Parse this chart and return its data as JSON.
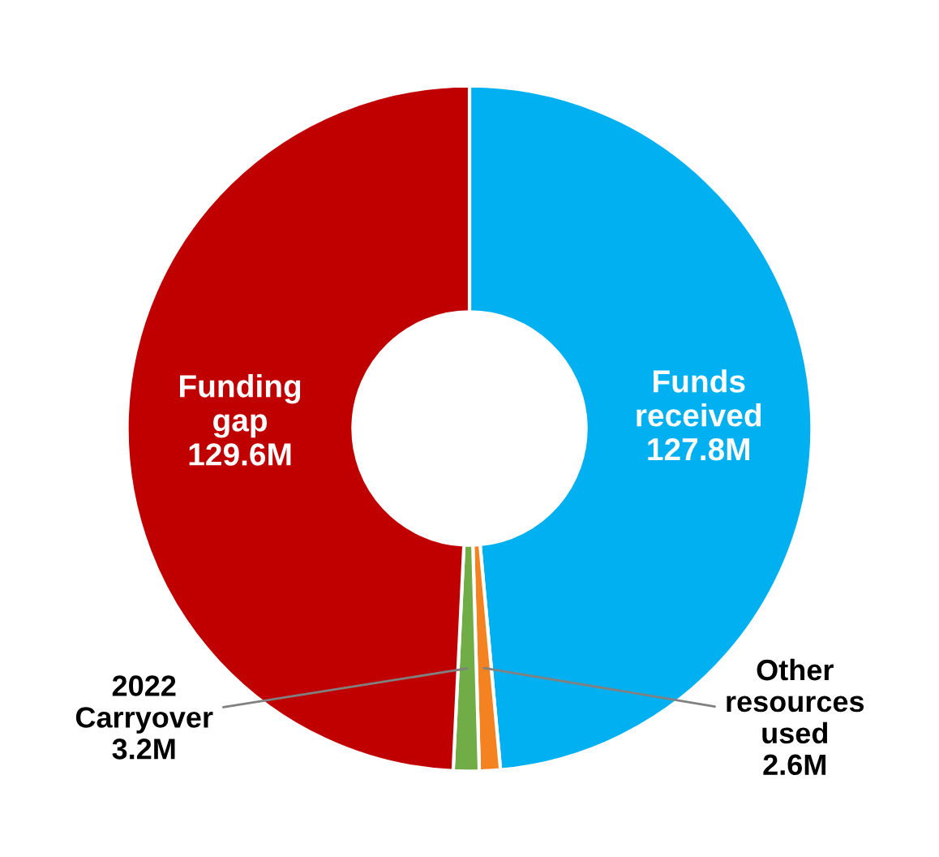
{
  "chart_data": {
    "type": "donut",
    "categories": [
      "Funds received",
      "Other resources used",
      "2022 Carryover",
      "Funding gap"
    ],
    "values": [
      127.8,
      2.6,
      3.2,
      129.6
    ],
    "colors": [
      "#00b0f0",
      "#f58220",
      "#70ad47",
      "#c00000"
    ],
    "value_labels": [
      "127.8M",
      "2.6M",
      "3.2M",
      "129.6M"
    ]
  }
}
